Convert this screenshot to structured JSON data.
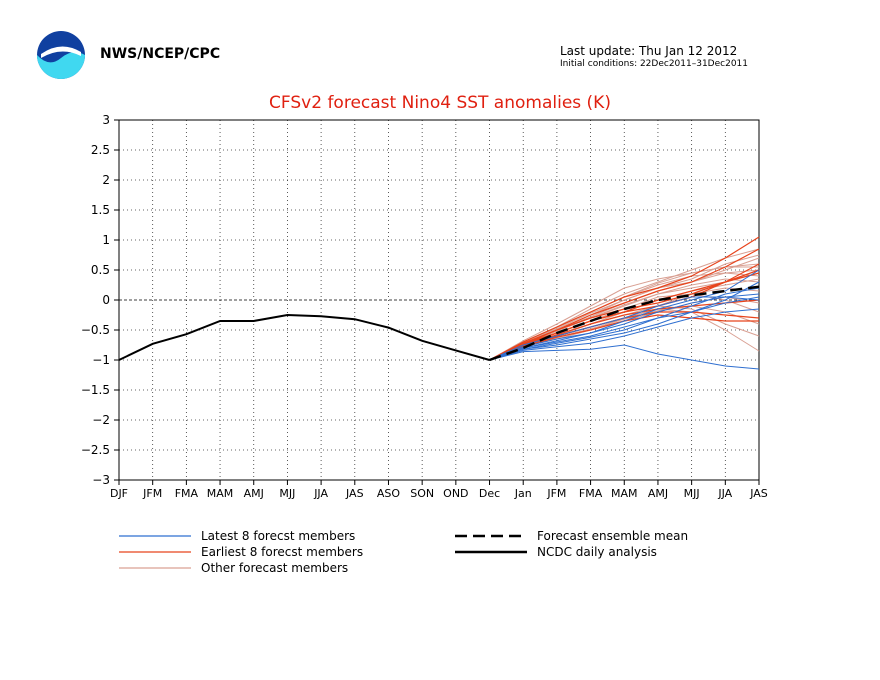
{
  "header": {
    "agency": "NWS/NCEP/CPC",
    "last_update": "Last update: Thu Jan 12 2012",
    "initial_conditions": "Initial conditions: 22Dec2011–31Dec2011"
  },
  "colors": {
    "latest": "#2f6fd0",
    "earliest": "#e8441c",
    "other": "#d9a093",
    "mean": "#000000",
    "title": "#e02010",
    "logo_blue": "#1040a0",
    "logo_cyan": "#40d8f0"
  },
  "icons": {
    "logo": "noaa-logo"
  },
  "chart_data": {
    "type": "line",
    "title": "CFSv2 forecast Nino4 SST anomalies (K)",
    "categories": [
      "DJF",
      "JFM",
      "FMA",
      "MAM",
      "AMJ",
      "MJJ",
      "JJA",
      "JAS",
      "ASO",
      "SON",
      "OND",
      "Dec",
      "Jan",
      "JFM",
      "FMA",
      "MAM",
      "AMJ",
      "MJJ",
      "JJA",
      "JAS"
    ],
    "yticks": [
      3,
      2.5,
      2,
      1.5,
      1,
      0.5,
      0,
      -0.5,
      -1,
      -1.5,
      -2,
      -2.5,
      -3
    ],
    "ylim": [
      -3,
      3
    ],
    "grid": true,
    "legend_position": "bottom",
    "legend": [
      {
        "label": "Latest 8 forecst members",
        "key": "latest",
        "style": "solid"
      },
      {
        "label": "Earliest 8 forecst members",
        "key": "earliest",
        "style": "solid"
      },
      {
        "label": "Other forecast members",
        "key": "other",
        "style": "solid"
      },
      {
        "label": "Forecast ensemble mean",
        "key": "mean",
        "style": "dashed"
      },
      {
        "label": "NCDC daily analysis",
        "key": "mean",
        "style": "solid"
      }
    ],
    "series": [
      {
        "name": "NCDC daily analysis",
        "key": "analysis",
        "x": [
          0,
          1,
          2,
          3,
          4,
          5,
          6,
          7,
          8,
          9,
          10,
          11
        ],
        "values": [
          -1.0,
          -0.73,
          -0.57,
          -0.35,
          -0.35,
          -0.25,
          -0.27,
          -0.32,
          -0.46,
          -0.68,
          -0.84,
          -1.0
        ]
      },
      {
        "name": "Forecast ensemble mean",
        "key": "mean",
        "x": [
          11,
          12,
          13,
          14,
          15,
          16,
          17,
          18,
          19
        ],
        "values": [
          -1.0,
          -0.8,
          -0.55,
          -0.35,
          -0.15,
          0.0,
          0.08,
          0.15,
          0.22
        ]
      }
    ],
    "forecast_members": {
      "latest": [
        [
          -1.0,
          -0.86,
          -0.84,
          -0.82,
          -0.75,
          -0.9,
          -1.0,
          -1.1,
          -1.15
        ],
        [
          -1.0,
          -0.8,
          -0.7,
          -0.6,
          -0.45,
          -0.3,
          -0.2,
          -0.05,
          0.05
        ],
        [
          -1.0,
          -0.82,
          -0.75,
          -0.65,
          -0.55,
          -0.4,
          -0.2,
          0.0,
          0.3
        ],
        [
          -1.0,
          -0.78,
          -0.65,
          -0.55,
          -0.35,
          -0.15,
          0.0,
          0.15,
          0.5
        ],
        [
          -1.0,
          -0.84,
          -0.78,
          -0.72,
          -0.6,
          -0.45,
          -0.3,
          -0.2,
          -0.15
        ],
        [
          -1.0,
          -0.75,
          -0.6,
          -0.45,
          -0.3,
          -0.1,
          0.05,
          0.05,
          0.0
        ],
        [
          -1.0,
          -0.8,
          -0.68,
          -0.55,
          -0.4,
          -0.2,
          -0.05,
          0.05,
          0.1
        ],
        [
          -1.0,
          -0.82,
          -0.72,
          -0.62,
          -0.5,
          -0.3,
          -0.1,
          0.1,
          0.2
        ]
      ],
      "earliest": [
        [
          -1.0,
          -0.7,
          -0.45,
          -0.2,
          0.05,
          0.2,
          0.4,
          0.7,
          1.05
        ],
        [
          -1.0,
          -0.72,
          -0.5,
          -0.25,
          -0.05,
          0.15,
          0.3,
          0.55,
          0.85
        ],
        [
          -1.0,
          -0.75,
          -0.55,
          -0.35,
          -0.2,
          -0.1,
          0.05,
          0.3,
          0.6
        ],
        [
          -1.0,
          -0.78,
          -0.62,
          -0.5,
          -0.35,
          -0.25,
          -0.3,
          -0.35,
          -0.35
        ],
        [
          -1.0,
          -0.74,
          -0.5,
          -0.3,
          -0.15,
          -0.05,
          0.1,
          0.3,
          0.5
        ],
        [
          -1.0,
          -0.77,
          -0.6,
          -0.45,
          -0.3,
          -0.2,
          -0.2,
          -0.25,
          -0.3
        ],
        [
          -1.0,
          -0.73,
          -0.55,
          -0.35,
          -0.2,
          0.0,
          0.15,
          0.3,
          0.45
        ],
        [
          -1.0,
          -0.76,
          -0.58,
          -0.4,
          -0.25,
          -0.15,
          -0.1,
          -0.05,
          0.0
        ]
      ],
      "other": [
        [
          -1.0,
          -0.7,
          -0.45,
          -0.15,
          0.1,
          0.3,
          0.5,
          0.7,
          0.85
        ],
        [
          -1.0,
          -0.68,
          -0.4,
          -0.1,
          0.2,
          0.35,
          0.45,
          0.55,
          0.6
        ],
        [
          -1.0,
          -0.72,
          -0.5,
          -0.25,
          0.0,
          0.2,
          0.3,
          0.45,
          0.5
        ],
        [
          -1.0,
          -0.8,
          -0.6,
          -0.4,
          -0.25,
          -0.1,
          -0.15,
          -0.4,
          -0.6
        ],
        [
          -1.0,
          -0.78,
          -0.65,
          -0.5,
          -0.3,
          -0.15,
          -0.2,
          -0.5,
          -0.85
        ],
        [
          -1.0,
          -0.75,
          -0.55,
          -0.35,
          -0.15,
          0.05,
          0.1,
          0.0,
          -0.2
        ],
        [
          -1.0,
          -0.7,
          -0.45,
          -0.2,
          0.05,
          0.25,
          0.4,
          0.45,
          0.4
        ],
        [
          -1.0,
          -0.74,
          -0.52,
          -0.3,
          -0.1,
          0.1,
          0.25,
          0.35,
          0.3
        ],
        [
          -1.0,
          -0.76,
          -0.6,
          -0.45,
          -0.3,
          -0.1,
          0.1,
          0.2,
          0.15
        ],
        [
          -1.0,
          -0.72,
          -0.5,
          -0.28,
          -0.05,
          0.15,
          0.3,
          0.5,
          0.7
        ],
        [
          -1.0,
          -0.79,
          -0.63,
          -0.48,
          -0.35,
          -0.2,
          -0.05,
          0.05,
          -0.05
        ],
        [
          -1.0,
          -0.7,
          -0.48,
          -0.22,
          0.0,
          0.2,
          0.35,
          0.6,
          0.75
        ],
        [
          -1.0,
          -0.75,
          -0.58,
          -0.4,
          -0.2,
          0.0,
          0.15,
          0.25,
          0.35
        ],
        [
          -1.0,
          -0.77,
          -0.62,
          -0.48,
          -0.32,
          -0.18,
          -0.1,
          -0.2,
          -0.4
        ],
        [
          -1.0,
          -0.73,
          -0.5,
          -0.3,
          -0.08,
          0.1,
          0.2,
          0.3,
          0.45
        ],
        [
          -1.0,
          -0.71,
          -0.46,
          -0.2,
          0.05,
          0.28,
          0.45,
          0.55,
          0.55
        ]
      ]
    }
  }
}
